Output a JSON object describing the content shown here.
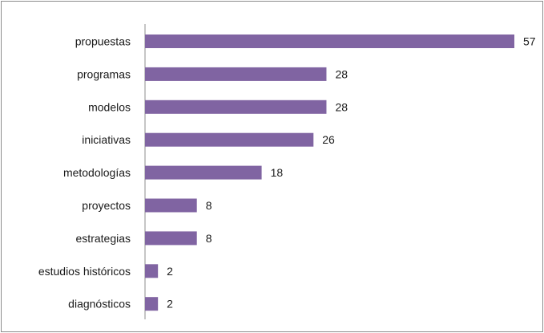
{
  "chart_data": {
    "type": "bar",
    "orientation": "horizontal",
    "title": "",
    "xlabel": "",
    "ylabel": "",
    "categories": [
      "propuestas",
      "programas",
      "modelos",
      "iniciativas",
      "metodologías",
      "proyectos",
      "estrategias",
      "estudios históricos",
      "diagnósticos"
    ],
    "values": [
      57,
      28,
      28,
      26,
      18,
      8,
      8,
      2,
      2
    ],
    "xlim": [
      0,
      57
    ],
    "grid": false,
    "legend": "none",
    "data_labels": true,
    "bar_color": "#8064a2",
    "axis_color": "#8c8c8c"
  }
}
